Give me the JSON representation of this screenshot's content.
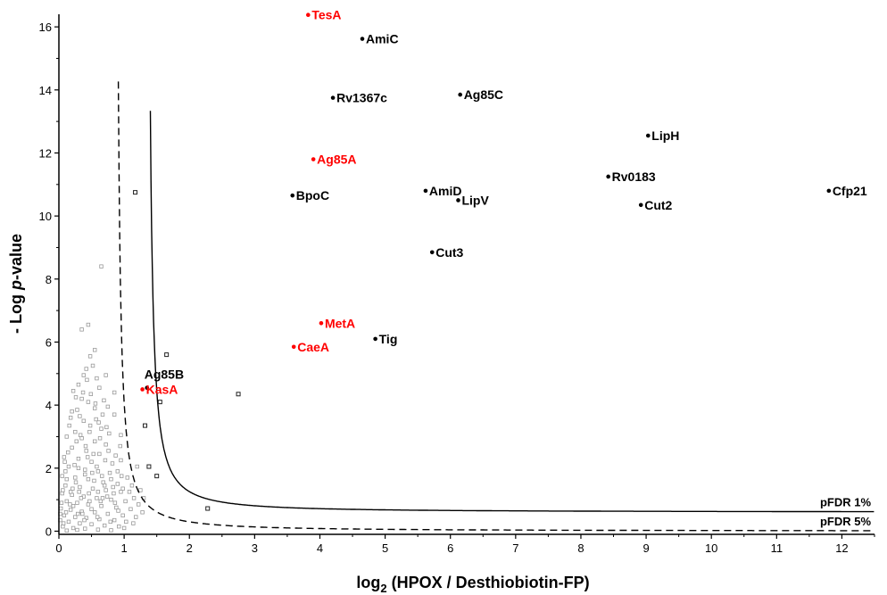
{
  "chart_data": {
    "type": "scatter",
    "title": "",
    "xlabel": {
      "prefix": "log",
      "sub": "2",
      "rest": " (HPOX / Desthiobiotin-FP)"
    },
    "ylabel": {
      "prefix": "- Log ",
      "italic": "p",
      "rest": "-value"
    },
    "xlim": [
      0,
      12.5
    ],
    "ylim": [
      -0.1,
      16.4
    ],
    "xticks": [
      0,
      1,
      2,
      3,
      4,
      5,
      6,
      7,
      8,
      9,
      10,
      11,
      12
    ],
    "yticks": [
      0,
      2,
      4,
      6,
      8,
      10,
      12,
      14,
      16
    ],
    "colors": {
      "label_black": "#000000",
      "label_red": "#ff0000",
      "background_points": "#999999",
      "border_points": "#222222"
    },
    "labeled_points": [
      {
        "label": "TesA",
        "x": 3.82,
        "y": 16.38,
        "highlight": true
      },
      {
        "label": "AmiC",
        "x": 4.65,
        "y": 15.62,
        "highlight": false
      },
      {
        "label": "Rv1367c",
        "x": 4.2,
        "y": 13.75,
        "highlight": false
      },
      {
        "label": "Ag85C",
        "x": 6.15,
        "y": 13.85,
        "highlight": false
      },
      {
        "label": "LipH",
        "x": 9.03,
        "y": 12.55,
        "highlight": false
      },
      {
        "label": "Ag85A",
        "x": 3.9,
        "y": 11.8,
        "highlight": true
      },
      {
        "label": "Rv0183",
        "x": 8.42,
        "y": 11.25,
        "highlight": false
      },
      {
        "label": "BpoC",
        "x": 3.58,
        "y": 10.65,
        "highlight": false
      },
      {
        "label": "AmiD",
        "x": 5.62,
        "y": 10.8,
        "highlight": false
      },
      {
        "label": "LipV",
        "x": 6.12,
        "y": 10.5,
        "highlight": false
      },
      {
        "label": "Cut2",
        "x": 8.92,
        "y": 10.35,
        "highlight": false
      },
      {
        "label": "Cfp21",
        "x": 11.8,
        "y": 10.8,
        "highlight": false
      },
      {
        "label": "Cut3",
        "x": 5.72,
        "y": 8.85,
        "highlight": false
      },
      {
        "label": "MetA",
        "x": 4.02,
        "y": 6.6,
        "highlight": true
      },
      {
        "label": "Tig",
        "x": 4.85,
        "y": 6.1,
        "highlight": false
      },
      {
        "label": "CaeA",
        "x": 3.6,
        "y": 5.85,
        "highlight": true
      },
      {
        "label": "Ag85B",
        "x": 1.35,
        "y": 4.55,
        "highlight": false
      },
      {
        "label": "KasA",
        "x": 1.28,
        "y": 4.5,
        "highlight": true
      }
    ],
    "border_points": [
      [
        1.17,
        10.75
      ],
      [
        1.65,
        5.6
      ],
      [
        2.75,
        4.35
      ],
      [
        1.32,
        3.35
      ],
      [
        1.38,
        2.05
      ],
      [
        1.5,
        1.75
      ],
      [
        2.28,
        0.72
      ],
      [
        1.55,
        4.1
      ]
    ],
    "background_points": [
      [
        0.45,
        6.55
      ],
      [
        0.35,
        6.4
      ],
      [
        0.65,
        8.4
      ],
      [
        0.55,
        5.75
      ],
      [
        0.48,
        5.55
      ],
      [
        0.42,
        5.15
      ],
      [
        0.52,
        5.25
      ],
      [
        0.38,
        4.95
      ],
      [
        0.3,
        4.65
      ],
      [
        0.58,
        4.85
      ],
      [
        0.22,
        4.45
      ],
      [
        0.62,
        4.55
      ],
      [
        0.35,
        4.2
      ],
      [
        0.45,
        4.1
      ],
      [
        0.28,
        3.85
      ],
      [
        0.55,
        3.9
      ],
      [
        0.75,
        3.95
      ],
      [
        0.85,
        3.7
      ],
      [
        0.18,
        3.6
      ],
      [
        0.38,
        3.5
      ],
      [
        0.48,
        3.35
      ],
      [
        0.65,
        3.25
      ],
      [
        0.25,
        3.15
      ],
      [
        0.12,
        3.0
      ],
      [
        0.35,
        2.95
      ],
      [
        0.55,
        2.85
      ],
      [
        0.72,
        2.75
      ],
      [
        0.2,
        2.65
      ],
      [
        0.42,
        2.55
      ],
      [
        0.62,
        2.45
      ],
      [
        0.08,
        2.35
      ],
      [
        0.3,
        2.3
      ],
      [
        0.5,
        2.2
      ],
      [
        0.82,
        2.15
      ],
      [
        0.95,
        2.25
      ],
      [
        0.15,
        2.05
      ],
      [
        0.4,
        1.95
      ],
      [
        0.6,
        1.9
      ],
      [
        0.78,
        1.85
      ],
      [
        1.05,
        1.7
      ],
      [
        0.05,
        1.75
      ],
      [
        0.25,
        1.7
      ],
      [
        0.45,
        1.65
      ],
      [
        0.68,
        1.55
      ],
      [
        0.9,
        1.5
      ],
      [
        1.12,
        1.45
      ],
      [
        1.2,
        2.05
      ],
      [
        0.1,
        1.45
      ],
      [
        0.32,
        1.4
      ],
      [
        0.52,
        1.35
      ],
      [
        0.72,
        1.3
      ],
      [
        0.95,
        1.25
      ],
      [
        1.25,
        1.3
      ],
      [
        0.05,
        1.2
      ],
      [
        0.2,
        1.15
      ],
      [
        0.38,
        1.1
      ],
      [
        0.58,
        1.05
      ],
      [
        0.8,
        1.0
      ],
      [
        1.02,
        0.95
      ],
      [
        1.3,
        1.05
      ],
      [
        0.12,
        0.95
      ],
      [
        0.28,
        0.9
      ],
      [
        0.45,
        0.85
      ],
      [
        0.65,
        0.8
      ],
      [
        0.88,
        0.75
      ],
      [
        1.1,
        0.7
      ],
      [
        0.03,
        0.72
      ],
      [
        0.18,
        0.68
      ],
      [
        0.35,
        0.62
      ],
      [
        0.55,
        0.6
      ],
      [
        0.75,
        0.55
      ],
      [
        0.98,
        0.5
      ],
      [
        0.08,
        0.5
      ],
      [
        0.25,
        0.45
      ],
      [
        0.42,
        0.42
      ],
      [
        0.62,
        0.38
      ],
      [
        0.85,
        0.35
      ],
      [
        0.02,
        0.35
      ],
      [
        0.15,
        0.3
      ],
      [
        0.32,
        0.25
      ],
      [
        0.5,
        0.22
      ],
      [
        0.7,
        0.18
      ],
      [
        0.92,
        0.15
      ],
      [
        0.06,
        0.15
      ],
      [
        0.22,
        0.1
      ],
      [
        0.4,
        0.08
      ],
      [
        0.6,
        0.05
      ],
      [
        0.8,
        0.03
      ],
      [
        1.0,
        0.1
      ],
      [
        0.12,
        0.02
      ],
      [
        0.28,
        0.04
      ],
      [
        0.02,
        0.55
      ],
      [
        0.04,
        0.9
      ],
      [
        0.06,
        1.3
      ],
      [
        0.1,
        1.9
      ],
      [
        0.14,
        2.5
      ],
      [
        0.18,
        1.25
      ],
      [
        0.22,
        0.8
      ],
      [
        0.26,
        1.55
      ],
      [
        0.3,
        2.0
      ],
      [
        0.34,
        1.05
      ],
      [
        0.36,
        0.55
      ],
      [
        0.4,
        1.8
      ],
      [
        0.44,
        2.35
      ],
      [
        0.46,
        1.2
      ],
      [
        0.5,
        0.7
      ],
      [
        0.54,
        1.6
      ],
      [
        0.58,
        2.05
      ],
      [
        0.6,
        1.25
      ],
      [
        0.64,
        0.95
      ],
      [
        0.66,
        1.75
      ],
      [
        0.7,
        1.45
      ],
      [
        0.74,
        1.1
      ],
      [
        0.76,
        2.55
      ],
      [
        0.8,
        1.65
      ],
      [
        0.84,
        1.2
      ],
      [
        0.86,
        0.9
      ],
      [
        0.9,
        1.9
      ],
      [
        0.94,
        2.7
      ],
      [
        0.98,
        1.35
      ],
      [
        1.15,
        1.05
      ],
      [
        1.18,
        0.45
      ],
      [
        1.22,
        0.85
      ],
      [
        1.28,
        0.6
      ],
      [
        0.16,
        3.35
      ],
      [
        0.24,
        2.1
      ],
      [
        0.27,
        2.85
      ],
      [
        0.33,
        3.05
      ],
      [
        0.41,
        2.7
      ],
      [
        0.47,
        3.15
      ],
      [
        0.53,
        2.45
      ],
      [
        0.57,
        3.55
      ],
      [
        0.63,
        2.95
      ],
      [
        0.67,
        3.7
      ],
      [
        0.71,
        2.25
      ],
      [
        0.77,
        3.1
      ],
      [
        0.2,
        3.8
      ],
      [
        0.26,
        4.25
      ],
      [
        0.32,
        3.65
      ],
      [
        0.37,
        4.4
      ],
      [
        0.43,
        4.8
      ],
      [
        0.49,
        4.35
      ],
      [
        0.56,
        4.05
      ],
      [
        0.61,
        3.45
      ],
      [
        0.69,
        4.15
      ],
      [
        0.73,
        3.3
      ],
      [
        0.12,
        1.65
      ],
      [
        0.09,
        2.2
      ],
      [
        0.07,
        0.25
      ],
      [
        0.11,
        0.6
      ],
      [
        0.17,
        0.85
      ],
      [
        0.21,
        1.35
      ],
      [
        0.29,
        0.55
      ],
      [
        0.31,
        1.25
      ],
      [
        0.39,
        0.35
      ],
      [
        0.47,
        0.95
      ],
      [
        0.51,
        1.85
      ],
      [
        0.59,
        0.45
      ],
      [
        0.67,
        1.05
      ],
      [
        0.79,
        0.3
      ],
      [
        0.83,
        1.4
      ],
      [
        0.87,
        2.4
      ],
      [
        0.91,
        0.65
      ],
      [
        0.96,
        1.75
      ],
      [
        1.08,
        1.25
      ],
      [
        1.03,
        0.3
      ],
      [
        1.14,
        0.25
      ],
      [
        0.72,
        4.95
      ],
      [
        0.85,
        4.4
      ],
      [
        0.95,
        3.05
      ]
    ],
    "threshold_curves": [
      {
        "name": "pFDR 1%",
        "style": "solid",
        "s0": 0.35,
        "x0": 1.34,
        "c": 0.39,
        "asymptote": 0.6
      },
      {
        "name": "pFDR 5%",
        "style": "dashed",
        "s0": 0.25,
        "x0": 0.86,
        "c": 0.35,
        "asymptote": 0.0
      }
    ]
  }
}
